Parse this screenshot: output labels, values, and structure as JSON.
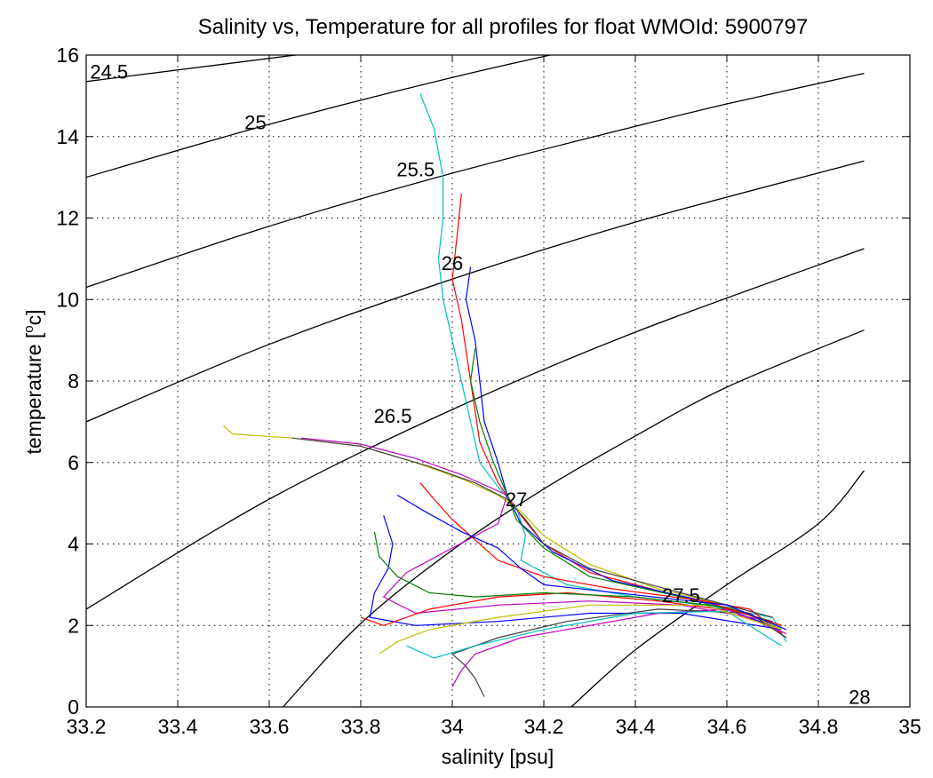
{
  "chart_data": {
    "type": "line",
    "title": "Salinity vs, Temperature for all profiles for float WMOId: 5900797",
    "xlabel": "salinity [psu]",
    "ylabel_main": "temperature [",
    "ylabel_sup": "o",
    "ylabel_end": "c]",
    "xlim": [
      33.2,
      35
    ],
    "ylim": [
      0,
      16
    ],
    "xticks": [
      33.2,
      33.4,
      33.6,
      33.8,
      34,
      34.2,
      34.4,
      34.6,
      34.8,
      35
    ],
    "xtick_labels": [
      "33.2",
      "33.4",
      "33.6",
      "33.8",
      "34",
      "34.2",
      "34.4",
      "34.6",
      "34.8",
      "35"
    ],
    "yticks": [
      0,
      2,
      4,
      6,
      8,
      10,
      12,
      14,
      16
    ],
    "ytick_labels": [
      "0",
      "2",
      "4",
      "6",
      "8",
      "10",
      "12",
      "14",
      "16"
    ],
    "grid": true,
    "legend": "none",
    "density_contours": [
      {
        "label": "24.5",
        "label_pos": [
          33.25,
          15.6
        ],
        "points": [
          [
            33.2,
            15.35
          ],
          [
            34.5,
            17.2
          ]
        ]
      },
      {
        "label": "25",
        "label_pos": [
          33.57,
          14.35
        ],
        "points": [
          [
            33.2,
            13.0
          ],
          [
            33.6,
            14.3
          ],
          [
            34.0,
            15.45
          ],
          [
            34.4,
            16.45
          ],
          [
            34.7,
            17.1
          ]
        ]
      },
      {
        "label": "25.5",
        "label_pos": [
          33.92,
          13.2
        ],
        "points": [
          [
            33.2,
            10.3
          ],
          [
            33.6,
            11.8
          ],
          [
            34.0,
            13.1
          ],
          [
            34.4,
            14.25
          ],
          [
            34.6,
            14.8
          ],
          [
            34.9,
            15.55
          ]
        ]
      },
      {
        "label": "26",
        "label_pos": [
          34.0,
          10.9
        ],
        "points": [
          [
            33.2,
            7.0
          ],
          [
            33.6,
            8.9
          ],
          [
            34.0,
            10.5
          ],
          [
            34.4,
            11.9
          ],
          [
            34.9,
            13.4
          ]
        ]
      },
      {
        "label": "26.5",
        "label_pos": [
          33.87,
          7.15
        ],
        "points": [
          [
            33.2,
            2.4
          ],
          [
            33.6,
            5.1
          ],
          [
            34.0,
            7.3
          ],
          [
            34.4,
            9.2
          ],
          [
            34.9,
            11.25
          ]
        ]
      },
      {
        "label": "27",
        "label_pos": [
          34.14,
          5.1
        ],
        "points": [
          [
            33.63,
            0.0
          ],
          [
            33.8,
            2.05
          ],
          [
            34.0,
            3.85
          ],
          [
            34.2,
            5.35
          ],
          [
            34.4,
            6.65
          ],
          [
            34.6,
            7.85
          ],
          [
            34.9,
            9.25
          ]
        ]
      },
      {
        "label": "27.5",
        "label_pos": [
          34.5,
          2.75
        ],
        "points": [
          [
            34.26,
            0.0
          ],
          [
            34.4,
            1.4
          ],
          [
            34.6,
            3.0
          ],
          [
            34.8,
            4.5
          ],
          [
            34.9,
            5.8
          ]
        ]
      },
      {
        "label": "28",
        "label_pos": [
          34.89,
          0.25
        ],
        "points": []
      }
    ],
    "series": [
      {
        "color": "#00bfbf",
        "points": [
          [
            33.93,
            15.05
          ],
          [
            33.96,
            14.2
          ],
          [
            33.98,
            13.0
          ],
          [
            33.98,
            12.0
          ],
          [
            33.97,
            11.0
          ],
          [
            33.98,
            10.0
          ],
          [
            34.0,
            9.0
          ],
          [
            34.02,
            8.0
          ],
          [
            34.04,
            7.0
          ],
          [
            34.06,
            6.0
          ],
          [
            34.1,
            5.4
          ],
          [
            34.14,
            4.9
          ],
          [
            34.16,
            4.2
          ],
          [
            34.15,
            3.6
          ],
          [
            34.25,
            3.0
          ],
          [
            34.4,
            2.7
          ],
          [
            34.55,
            2.5
          ],
          [
            34.7,
            2.2
          ],
          [
            34.73,
            1.6
          ]
        ]
      },
      {
        "color": "#ff0000",
        "points": [
          [
            34.02,
            12.6
          ],
          [
            34.01,
            11.5
          ],
          [
            34.0,
            10.5
          ],
          [
            34.02,
            9.5
          ],
          [
            34.04,
            8.0
          ],
          [
            34.06,
            6.5
          ],
          [
            34.1,
            5.5
          ],
          [
            34.15,
            4.7
          ],
          [
            34.2,
            4.0
          ],
          [
            34.3,
            3.3
          ],
          [
            34.5,
            2.7
          ],
          [
            34.65,
            2.4
          ],
          [
            34.72,
            1.8
          ]
        ]
      },
      {
        "color": "#0000ff",
        "points": [
          [
            34.04,
            10.8
          ],
          [
            34.03,
            10.0
          ],
          [
            34.05,
            9.0
          ],
          [
            34.06,
            8.0
          ],
          [
            34.07,
            7.0
          ],
          [
            34.1,
            6.0
          ],
          [
            34.12,
            5.2
          ],
          [
            34.15,
            4.5
          ],
          [
            34.22,
            3.8
          ],
          [
            34.35,
            3.1
          ],
          [
            34.55,
            2.6
          ],
          [
            34.72,
            1.9
          ]
        ]
      },
      {
        "color": "#008000",
        "points": [
          [
            34.05,
            8.8
          ],
          [
            34.04,
            8.0
          ],
          [
            34.06,
            7.0
          ],
          [
            34.09,
            6.0
          ],
          [
            34.12,
            5.2
          ],
          [
            34.14,
            4.6
          ],
          [
            34.2,
            3.9
          ],
          [
            34.3,
            3.2
          ],
          [
            34.5,
            2.7
          ],
          [
            34.7,
            2.1
          ]
        ]
      },
      {
        "color": "#bfbf00",
        "points": [
          [
            33.5,
            6.9
          ],
          [
            33.52,
            6.7
          ],
          [
            33.65,
            6.6
          ],
          [
            33.8,
            6.4
          ],
          [
            33.92,
            6.0
          ],
          [
            34.02,
            5.6
          ],
          [
            34.1,
            5.2
          ],
          [
            34.15,
            4.8
          ],
          [
            34.2,
            4.2
          ],
          [
            34.3,
            3.5
          ],
          [
            34.45,
            2.9
          ],
          [
            34.6,
            2.5
          ],
          [
            34.72,
            1.9
          ]
        ]
      },
      {
        "color": "#bf00bf",
        "points": [
          [
            33.67,
            6.6
          ],
          [
            33.8,
            6.45
          ],
          [
            33.92,
            6.1
          ],
          [
            34.02,
            5.7
          ],
          [
            34.12,
            5.2
          ],
          [
            34.1,
            4.5
          ],
          [
            34.0,
            3.9
          ],
          [
            33.9,
            3.3
          ],
          [
            33.85,
            2.7
          ],
          [
            33.92,
            2.3
          ],
          [
            34.1,
            2.5
          ],
          [
            34.3,
            2.6
          ],
          [
            34.5,
            2.5
          ],
          [
            34.7,
            2.1
          ]
        ]
      },
      {
        "color": "#404040",
        "points": [
          [
            33.65,
            6.6
          ],
          [
            33.8,
            6.4
          ],
          [
            33.95,
            5.9
          ],
          [
            34.05,
            5.5
          ],
          [
            34.12,
            5.1
          ],
          [
            34.16,
            4.6
          ],
          [
            34.2,
            4.0
          ],
          [
            34.3,
            3.4
          ],
          [
            34.5,
            2.8
          ],
          [
            34.7,
            2.2
          ]
        ]
      },
      {
        "color": "#0000ff",
        "points": [
          [
            33.85,
            4.7
          ],
          [
            33.87,
            4.0
          ],
          [
            33.86,
            3.4
          ],
          [
            33.83,
            2.8
          ],
          [
            33.82,
            2.2
          ],
          [
            33.92,
            2.0
          ],
          [
            34.1,
            2.1
          ],
          [
            34.3,
            2.3
          ],
          [
            34.5,
            2.3
          ],
          [
            34.72,
            1.9
          ]
        ]
      },
      {
        "color": "#ff0000",
        "points": [
          [
            33.8,
            2.2
          ],
          [
            33.85,
            2.0
          ],
          [
            33.95,
            2.4
          ],
          [
            34.1,
            2.7
          ],
          [
            34.25,
            2.8
          ],
          [
            34.45,
            2.6
          ],
          [
            34.65,
            2.3
          ],
          [
            34.73,
            1.7
          ]
        ]
      },
      {
        "color": "#bf00bf",
        "points": [
          [
            34.0,
            0.5
          ],
          [
            34.02,
            0.9
          ],
          [
            34.05,
            1.3
          ],
          [
            34.15,
            1.7
          ],
          [
            34.3,
            2.0
          ],
          [
            34.45,
            2.3
          ],
          [
            34.6,
            2.4
          ],
          [
            34.73,
            1.8
          ]
        ]
      },
      {
        "color": "#404040",
        "points": [
          [
            34.07,
            0.25
          ],
          [
            34.05,
            0.7
          ],
          [
            34.03,
            1.0
          ],
          [
            34.0,
            1.3
          ],
          [
            34.1,
            1.7
          ],
          [
            34.25,
            2.1
          ],
          [
            34.45,
            2.4
          ],
          [
            34.65,
            2.3
          ],
          [
            34.73,
            1.7
          ]
        ]
      },
      {
        "color": "#00bfbf",
        "points": [
          [
            33.9,
            1.5
          ],
          [
            33.96,
            1.2
          ],
          [
            34.05,
            1.5
          ],
          [
            34.2,
            1.9
          ],
          [
            34.4,
            2.3
          ],
          [
            34.6,
            2.35
          ],
          [
            34.72,
            1.5
          ]
        ]
      },
      {
        "color": "#bfbf00",
        "points": [
          [
            33.84,
            1.3
          ],
          [
            33.88,
            1.6
          ],
          [
            33.95,
            1.9
          ],
          [
            34.1,
            2.2
          ],
          [
            34.3,
            2.5
          ],
          [
            34.55,
            2.5
          ],
          [
            34.72,
            1.9
          ]
        ]
      },
      {
        "color": "#008000",
        "points": [
          [
            33.83,
            4.3
          ],
          [
            33.84,
            3.7
          ],
          [
            33.88,
            3.2
          ],
          [
            33.95,
            2.8
          ],
          [
            34.05,
            2.7
          ],
          [
            34.2,
            2.8
          ],
          [
            34.4,
            2.7
          ],
          [
            34.6,
            2.45
          ],
          [
            34.72,
            2.0
          ]
        ]
      },
      {
        "color": "#ff0000",
        "points": [
          [
            33.93,
            5.5
          ],
          [
            33.96,
            5.1
          ],
          [
            34.0,
            4.6
          ],
          [
            34.05,
            4.1
          ],
          [
            34.1,
            3.6
          ],
          [
            34.2,
            3.2
          ],
          [
            34.35,
            2.9
          ],
          [
            34.55,
            2.6
          ],
          [
            34.72,
            2.0
          ]
        ]
      },
      {
        "color": "#0000ff",
        "points": [
          [
            33.88,
            5.2
          ],
          [
            33.94,
            4.8
          ],
          [
            34.02,
            4.3
          ],
          [
            34.1,
            3.9
          ],
          [
            34.15,
            3.4
          ],
          [
            34.2,
            3.0
          ],
          [
            34.4,
            2.75
          ],
          [
            34.6,
            2.5
          ],
          [
            34.73,
            1.9
          ]
        ]
      }
    ]
  }
}
